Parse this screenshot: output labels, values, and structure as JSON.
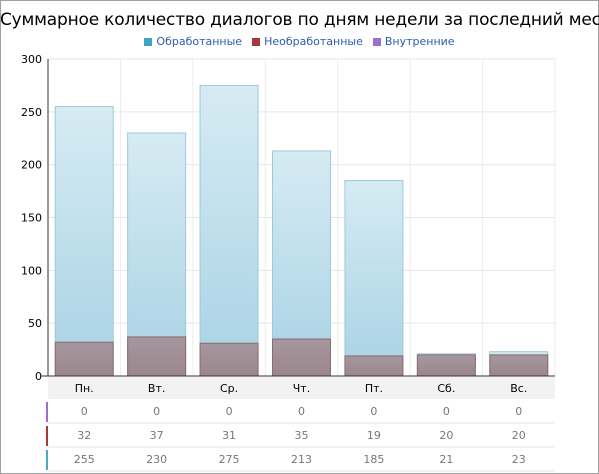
{
  "chart_data": {
    "type": "bar",
    "title": "Суммарное количество диалогов по дням недели за последний месяц",
    "categories": [
      "Пн.",
      "Вт.",
      "Ср.",
      "Чт.",
      "Пт.",
      "Сб.",
      "Вс."
    ],
    "series": [
      {
        "name": "Обработанные",
        "color": "#4fa8c8",
        "values": [
          255,
          230,
          275,
          213,
          185,
          21,
          23
        ]
      },
      {
        "name": "Необработанные",
        "color": "#a63a3a",
        "values": [
          32,
          37,
          31,
          35,
          19,
          20,
          20
        ]
      },
      {
        "name": "Внутренние",
        "color": "#9b6fcf",
        "values": [
          0,
          0,
          0,
          0,
          0,
          0,
          0
        ]
      }
    ],
    "ylim": [
      0,
      300
    ],
    "yticks": [
      0,
      50,
      100,
      150,
      200,
      250,
      300
    ],
    "grid": true,
    "legend_position": "top",
    "table_row_order": [
      "Внутренние",
      "Необработанные",
      "Обработанные"
    ]
  }
}
